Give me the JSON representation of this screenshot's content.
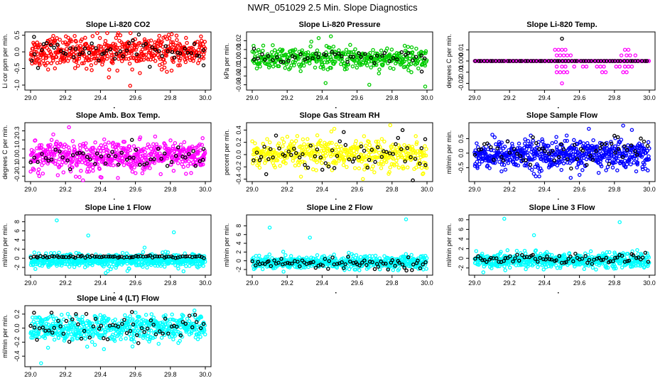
{
  "figure": {
    "title": "NWR_051029  2.5 Min. Slope Diagnostics"
  },
  "colors": {
    "red": "#ff0000",
    "green": "#00cc00",
    "magenta": "#ff00ff",
    "yellow": "#ffff00",
    "blue": "#0000ff",
    "cyan": "#00ffff",
    "black": "#000000"
  },
  "chart_data": [
    {
      "type": "scatter",
      "title": "Slope Li-820 CO2",
      "ylabel": "Li cor ppm per min.",
      "xlabel": "",
      "xlim": [
        29.0,
        30.0
      ],
      "ylim": [
        -1.15,
        0.6
      ],
      "x_ticks": [
        "29.0",
        "29.2",
        "29.4",
        "29.6",
        "29.8",
        "30.0"
      ],
      "y_ticks": [
        -1.0,
        -0.5,
        0.0,
        0.5
      ],
      "y_tick_labels": [
        "-1.0",
        "-0.5",
        "0.0",
        "0.5"
      ],
      "series": [
        {
          "name": "all",
          "color": "#ff0000",
          "center": 0.0,
          "spread": 0.22,
          "n": 520,
          "extra_x": [
            29.35,
            29.57,
            29.13,
            29.78
          ],
          "extra_y": [
            -0.55,
            -1.02,
            0.48,
            -0.6
          ]
        },
        {
          "name": "highlight",
          "color": "#000000",
          "center": 0.0,
          "spread": 0.17,
          "n": 55,
          "extra_x": [
            29.02,
            29.99
          ],
          "extra_y": [
            0.45,
            0.05
          ]
        }
      ]
    },
    {
      "type": "scatter",
      "title": "Slope Li-820 Pressure",
      "ylabel": "kPa per min.",
      "xlabel": "",
      "xlim": [
        29.0,
        30.0
      ],
      "ylim": [
        -0.036,
        0.03
      ],
      "x_ticks": [
        "29.0",
        "29.2",
        "29.4",
        "29.6",
        "29.8",
        "30.0"
      ],
      "y_ticks": [
        -0.03,
        -0.02,
        -0.01,
        0.0,
        0.01,
        0.02
      ],
      "y_tick_labels": [
        "-0.03",
        "-0.02",
        "-0.01",
        "0.00",
        "0.01",
        "0.02"
      ],
      "series": [
        {
          "name": "all",
          "color": "#00cc00",
          "center": 0.0,
          "spread": 0.006,
          "n": 420,
          "extra_x": [
            29.38,
            29.42,
            29.99,
            29.67,
            29.45
          ],
          "extra_y": [
            0.023,
            -0.028,
            -0.032,
            -0.03,
            0.025
          ]
        },
        {
          "name": "highlight",
          "color": "#000000",
          "center": 0.0,
          "spread": 0.004,
          "n": 45,
          "extra_x": [
            29.01,
            29.97
          ],
          "extra_y": [
            0.011,
            -0.015
          ]
        }
      ]
    },
    {
      "type": "scatter",
      "title": "Slope Li-820 Temp.",
      "ylabel": "degrees C per min.",
      "xlabel": "",
      "xlim": [
        29.0,
        30.0
      ],
      "ylim": [
        -0.026,
        0.026
      ],
      "x_ticks": [
        "29.0",
        "29.2",
        "29.4",
        "29.6",
        "29.8",
        "30.0"
      ],
      "y_ticks": [
        -0.02,
        -0.01,
        0.0,
        0.01
      ],
      "y_tick_labels": [
        "-0.02",
        "-0.01",
        "0.000",
        "0.01"
      ],
      "series": [
        {
          "name": "baseline",
          "color": "#ff00ff",
          "center": 0.0,
          "spread": 0.0,
          "n": 180,
          "extra_x": [
            29.46,
            29.48,
            29.5,
            29.52,
            29.47,
            29.49,
            29.51,
            29.53,
            29.55,
            29.47,
            29.5,
            29.52,
            29.57,
            29.62,
            29.64,
            29.7,
            29.72,
            29.74,
            29.81,
            29.83,
            29.86,
            29.88,
            29.9,
            29.84,
            29.87,
            29.89,
            29.92,
            29.86,
            29.88,
            29.47,
            29.49,
            29.51,
            29.53,
            29.73,
            29.75,
            29.85,
            29.87,
            29.5
          ],
          "extra_y": [
            0.01,
            0.01,
            0.01,
            0.01,
            0.005,
            0.005,
            0.005,
            0.005,
            0.005,
            -0.005,
            -0.005,
            -0.005,
            -0.005,
            -0.005,
            -0.005,
            -0.005,
            -0.005,
            -0.005,
            -0.005,
            -0.005,
            -0.005,
            -0.005,
            -0.005,
            0.005,
            0.005,
            0.005,
            0.005,
            0.01,
            0.01,
            -0.01,
            -0.01,
            -0.01,
            -0.01,
            -0.01,
            -0.01,
            -0.01,
            -0.01,
            -0.02
          ]
        },
        {
          "name": "highlight",
          "color": "#000000",
          "center": 0.0,
          "spread": 0.0,
          "n": 60,
          "extra_x": [
            29.5
          ],
          "extra_y": [
            0.02
          ]
        }
      ]
    },
    {
      "type": "scatter",
      "title": "Slope Amb. Box Temp.",
      "ylabel": "degrees C per min.",
      "xlabel": "",
      "xlim": [
        29.0,
        30.0
      ],
      "ylim": [
        -0.26,
        0.39
      ],
      "x_ticks": [
        "29.0",
        "29.2",
        "29.4",
        "29.6",
        "29.8",
        "30.0"
      ],
      "y_ticks": [
        -0.2,
        -0.1,
        0.0,
        0.1,
        0.2,
        0.3
      ],
      "y_tick_labels": [
        "-0.2",
        "-0.1",
        "0.0",
        "0.1",
        "0.2",
        "0.3"
      ],
      "series": [
        {
          "name": "all",
          "color": "#ff00ff",
          "center": 0.02,
          "spread": 0.08,
          "n": 560,
          "extra_x": [
            29.22,
            29.13,
            29.05,
            29.28,
            29.4,
            29.5
          ],
          "extra_y": [
            0.34,
            0.26,
            -0.2,
            -0.21,
            -0.21,
            -0.22
          ]
        },
        {
          "name": "highlight",
          "color": "#000000",
          "center": 0.0,
          "spread": 0.06,
          "n": 50,
          "extra_x": [
            29.99,
            29.58
          ],
          "extra_y": [
            0.1,
            0.2
          ]
        }
      ]
    },
    {
      "type": "scatter",
      "title": "Slope Gas Stream RH",
      "ylabel": "percent per min.",
      "xlabel": "",
      "xlim": [
        29.0,
        30.0
      ],
      "ylim": [
        -0.44,
        0.52
      ],
      "x_ticks": [
        "29.0",
        "29.2",
        "29.4",
        "29.6",
        "29.8",
        "30.0"
      ],
      "y_ticks": [
        -0.4,
        -0.2,
        0.0,
        0.2,
        0.4
      ],
      "y_tick_labels": [
        "-0.4",
        "-0.2",
        "0.0",
        "0.2",
        "0.4"
      ],
      "series": [
        {
          "name": "all",
          "color": "#ffff00",
          "center": 0.0,
          "spread": 0.12,
          "n": 460,
          "extra_x": [
            29.47,
            29.79
          ],
          "extra_y": [
            0.42,
            0.48
          ]
        },
        {
          "name": "highlight",
          "color": "#000000",
          "center": 0.0,
          "spread": 0.13,
          "n": 60,
          "extra_x": [
            29.86,
            29.99,
            29.08
          ],
          "extra_y": [
            0.4,
            0.25,
            -0.32
          ]
        }
      ]
    },
    {
      "type": "scatter",
      "title": "Slope Sample Flow",
      "ylabel": "ml/min per min.",
      "xlabel": "",
      "xlim": [
        29.0,
        30.0
      ],
      "ylim": [
        -0.98,
        1.05
      ],
      "x_ticks": [
        "29.0",
        "29.2",
        "29.4",
        "29.6",
        "29.8",
        "30.0"
      ],
      "y_ticks": [
        -0.5,
        0.0,
        0.5
      ],
      "y_tick_labels": [
        "-0.5",
        "0.0",
        "0.5"
      ],
      "series": [
        {
          "name": "all",
          "color": "#0000ff",
          "center": -0.05,
          "spread": 0.25,
          "n": 620,
          "extra_x": [
            29.85,
            29.9,
            29.55,
            29.35
          ],
          "extra_y": [
            0.95,
            0.8,
            -0.85,
            -0.8
          ]
        },
        {
          "name": "highlight",
          "color": "#000000",
          "center": 0.0,
          "spread": 0.22,
          "n": 55,
          "extra_x": [
            29.8,
            29.82
          ],
          "extra_y": [
            0.6,
            0.55
          ]
        }
      ]
    },
    {
      "type": "scatter",
      "title": "Slope Line 1 Flow",
      "ylabel": "ml/min per min.",
      "xlabel": "",
      "xlim": [
        29.0,
        30.0
      ],
      "ylim": [
        -3.7,
        9.5
      ],
      "x_ticks": [
        "29.0",
        "29.2",
        "29.4",
        "29.6",
        "29.8",
        "30.0"
      ],
      "y_ticks": [
        -2,
        0,
        2,
        4,
        6,
        8
      ],
      "y_tick_labels": [
        "-2",
        "0",
        "2",
        "4",
        "6",
        "8"
      ],
      "series": [
        {
          "name": "all",
          "color": "#00ffff",
          "center": -0.5,
          "spread": 0.75,
          "n": 560,
          "extra_x": [
            29.15,
            29.33,
            29.82,
            29.43
          ],
          "extra_y": [
            8.3,
            5.0,
            5.7,
            -3.2
          ]
        },
        {
          "name": "highlight",
          "color": "#000000",
          "center": 0.35,
          "spread": 0.12,
          "n": 75,
          "extra_x": [],
          "extra_y": []
        }
      ]
    },
    {
      "type": "scatter",
      "title": "Slope Line 2 Flow",
      "ylabel": "ml/min per min.",
      "xlabel": "",
      "xlim": [
        29.0,
        30.0
      ],
      "ylim": [
        -3.3,
        10.5
      ],
      "x_ticks": [
        "29.0",
        "29.2",
        "29.4",
        "29.6",
        "29.8",
        "30.0"
      ],
      "y_ticks": [
        -2,
        0,
        2,
        4,
        6,
        8
      ],
      "y_tick_labels": [
        "-2",
        "0",
        "2",
        "4",
        "6",
        "8"
      ],
      "series": [
        {
          "name": "all",
          "color": "#00ffff",
          "center": -0.4,
          "spread": 0.75,
          "n": 560,
          "extra_x": [
            29.88,
            29.1,
            29.33
          ],
          "extra_y": [
            9.5,
            7.6,
            5.3
          ]
        },
        {
          "name": "highlight",
          "color": "#000000",
          "center": -0.6,
          "spread": 0.6,
          "n": 75,
          "extra_x": [],
          "extra_y": []
        }
      ]
    },
    {
      "type": "scatter",
      "title": "Slope Line 3 Flow",
      "ylabel": "ml/min per min.",
      "xlabel": "",
      "xlim": [
        29.0,
        30.0
      ],
      "ylim": [
        -3.5,
        9.0
      ],
      "x_ticks": [
        "29.0",
        "29.2",
        "29.4",
        "29.6",
        "29.8",
        "30.0"
      ],
      "y_ticks": [
        -2,
        0,
        2,
        4,
        6,
        8
      ],
      "y_tick_labels": [
        "-2",
        "0",
        "2",
        "4",
        "6",
        "8"
      ],
      "series": [
        {
          "name": "all",
          "color": "#00ffff",
          "center": -0.4,
          "spread": 0.75,
          "n": 560,
          "extra_x": [
            29.17,
            29.83,
            29.34,
            29.05
          ],
          "extra_y": [
            8.2,
            7.5,
            4.8,
            -2.9
          ]
        },
        {
          "name": "highlight",
          "color": "#000000",
          "center": -0.2,
          "spread": 0.6,
          "n": 75,
          "extra_x": [],
          "extra_y": []
        }
      ]
    },
    {
      "type": "scatter",
      "title": "Slope Line 4 (LT) Flow",
      "ylabel": "ml/min per min.",
      "xlabel": "",
      "xlim": [
        29.0,
        30.0
      ],
      "ylim": [
        -0.55,
        0.32
      ],
      "x_ticks": [
        "29.0",
        "29.2",
        "29.4",
        "29.6",
        "29.8",
        "30.0"
      ],
      "y_ticks": [
        -0.4,
        -0.2,
        0.0,
        0.2
      ],
      "y_tick_labels": [
        "-0.4",
        "-0.2",
        "0.0",
        "0.2"
      ],
      "series": [
        {
          "name": "all",
          "color": "#00ffff",
          "center": 0.0,
          "spread": 0.09,
          "n": 560,
          "extra_x": [
            29.06,
            29.42,
            29.1
          ],
          "extra_y": [
            -0.5,
            -0.3,
            -0.28
          ]
        },
        {
          "name": "highlight",
          "color": "#000000",
          "center": 0.02,
          "spread": 0.09,
          "n": 60,
          "extra_x": [
            29.02,
            29.12,
            29.58
          ],
          "extra_y": [
            0.22,
            0.22,
            0.23
          ]
        }
      ]
    }
  ]
}
